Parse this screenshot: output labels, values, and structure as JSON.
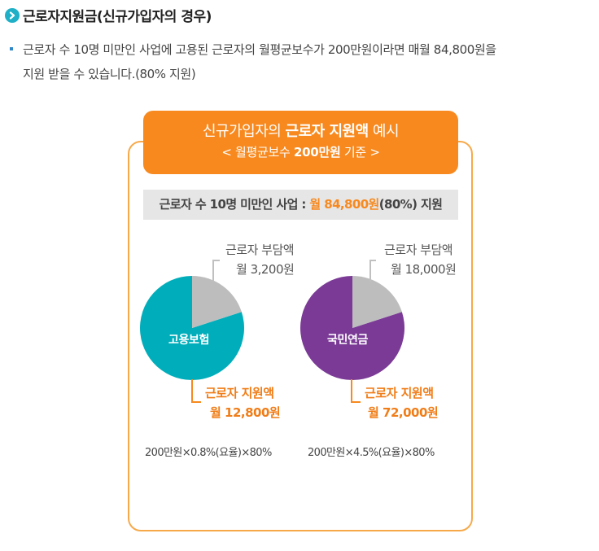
{
  "heading": {
    "title": "근로자지원금(신규가입자의 경우)"
  },
  "paragraph": {
    "line1": "근로자 수 10명 미만인 사업에 고용된 근로자의 월평균보수가 200만원이라면 매월 84,800원을",
    "line2": "지원 받을 수 있습니다.(80% 지원)"
  },
  "banner": {
    "line1_pre": "신규가입자의 ",
    "line1_bold": "근로자 지원액",
    "line1_post": " 예시",
    "line2_pre": "< 월평균보수 ",
    "line2_bold": "200만원",
    "line2_post": " 기준 >"
  },
  "summary": {
    "pre": "근로자 수 10명 미만인 사업 : ",
    "highlight": "월 84,800원",
    "post": "(80%) 지원"
  },
  "colors": {
    "orange": "#f7891f",
    "teal": "#00aebb",
    "purple": "#7a3a96",
    "gray_slice": "#bdbdbd"
  },
  "pies": [
    {
      "name": "고용보험",
      "worker_label": "근로자 부담액",
      "worker_amount": "월 3,200원",
      "support_label": "근로자 지원액",
      "support_amount": "월 12,800원",
      "formula": "200만원×0.8%(요율)×80%",
      "worker_share": 0.2
    },
    {
      "name": "국민연금",
      "worker_label": "근로자 부담액",
      "worker_amount": "월 18,000원",
      "support_label": "근로자 지원액",
      "support_amount": "월 72,000원",
      "formula": "200만원×4.5%(요율)×80%",
      "worker_share": 0.2
    }
  ]
}
